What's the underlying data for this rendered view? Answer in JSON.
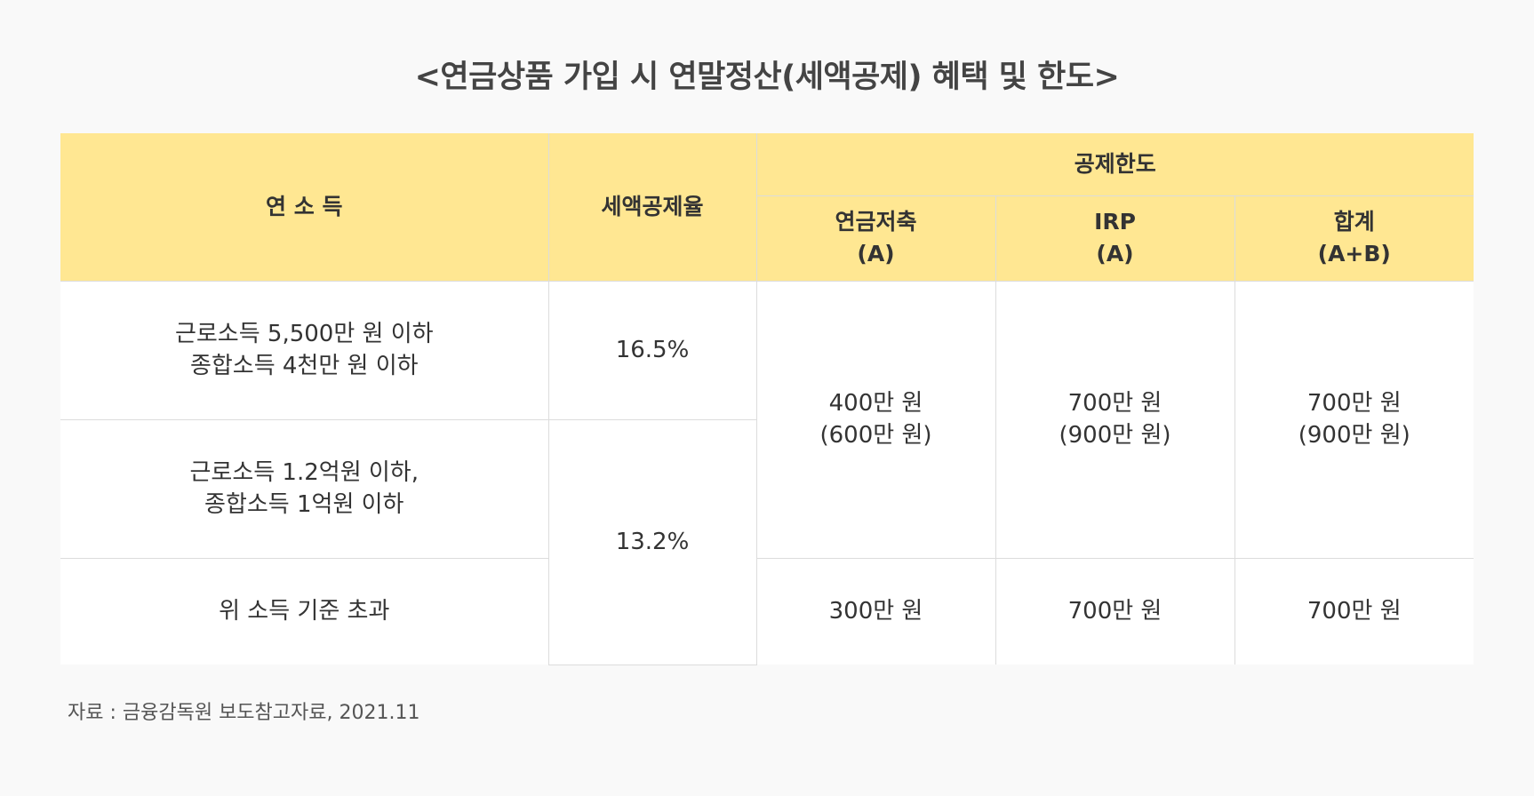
{
  "title": "<연금상품 가입 시 연말정산(세액공제) 혜택 및 한도>",
  "table": {
    "headers": {
      "income": "연 소 득",
      "rate": "세액공제율",
      "limit_group": "공제한도",
      "pension_savings": [
        "연금저축",
        "(A)"
      ],
      "irp": [
        "IRP",
        "(A)"
      ],
      "total": [
        "합계",
        "(A+B)"
      ]
    },
    "rows": [
      {
        "income": [
          "근로소득 5,500만 원 이하",
          "종합소득 4천만 원 이하"
        ],
        "rate": "16.5%"
      },
      {
        "income": [
          "근로소득 1.2억원 이하,",
          "종합소득 1억원 이하"
        ],
        "rate": "13.2%"
      },
      {
        "income": [
          "위 소득 기준 초과"
        ]
      }
    ],
    "limits_low_income": {
      "pension_savings": [
        "400만 원",
        "(600만 원)"
      ],
      "irp": [
        "700만 원",
        "(900만 원)"
      ],
      "total": [
        "700만 원",
        "(900만 원)"
      ]
    },
    "limits_high_income": {
      "pension_savings": "300만 원",
      "irp": "700만 원",
      "total": "700만 원"
    }
  },
  "source": "자료 : 금융감독원 보도참고자료, 2021.11",
  "colors": {
    "header_bg": "#ffe792",
    "page_bg": "#f9f9f9",
    "cell_bg": "#ffffff",
    "border": "#dcdcdc"
  }
}
